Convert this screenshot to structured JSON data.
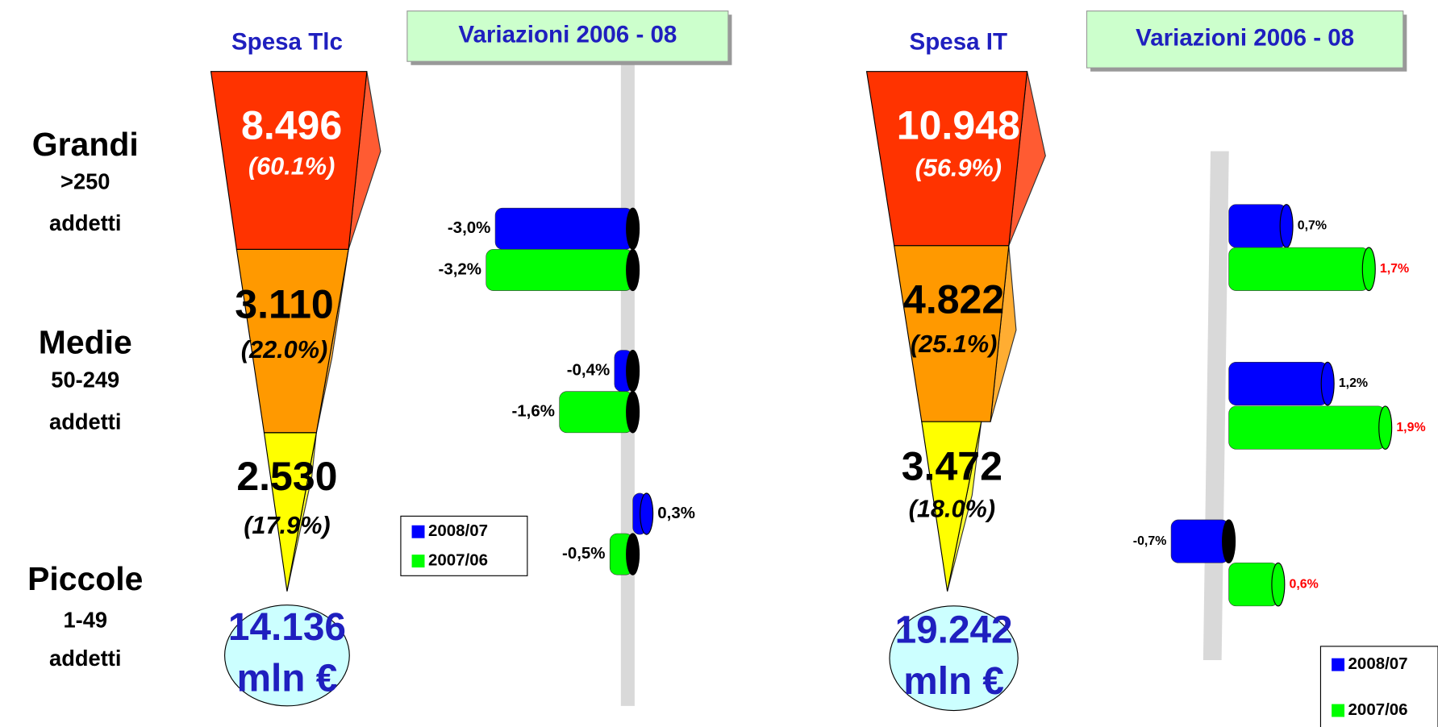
{
  "chart_data": [
    {
      "type": "funnel",
      "title": "Spesa Tlc",
      "categories": [
        "Grandi",
        "Medie",
        "Piccole"
      ],
      "category_sublabels": [
        [
          ">250",
          "addetti"
        ],
        [
          "50-249",
          "addetti"
        ],
        [
          "1-49",
          "addetti"
        ]
      ],
      "values": [
        8496,
        3110,
        2530
      ],
      "value_labels": [
        "8.496",
        "3.110",
        "2.530"
      ],
      "shares": [
        60.1,
        22.0,
        17.9
      ],
      "share_labels": [
        "(60.1%)",
        "(22.0%)",
        "(17.9%)"
      ],
      "colors": [
        "#ff3300",
        "#ff9900",
        "#ffff00"
      ],
      "total": 14136,
      "total_label": "14.136",
      "unit": "mln €"
    },
    {
      "type": "bar",
      "title": "Variazioni 2006 - 08",
      "xlim": [
        -4.2,
        1.0
      ],
      "legend": "lower left",
      "series": [
        {
          "name": "2008/07",
          "color": "#0000ff",
          "label_color": "#000000",
          "values": [
            -3.0,
            -0.4,
            0.3
          ],
          "value_labels": [
            "-3,0%",
            "-0,4%",
            "0,3%"
          ]
        },
        {
          "name": "2007/06",
          "color": "#00ff00",
          "label_color": "#000000",
          "values": [
            -3.2,
            -1.6,
            -0.5
          ],
          "value_labels": [
            "-3,2%",
            "-1,6%",
            "-0,5%"
          ]
        }
      ]
    },
    {
      "type": "funnel",
      "title": "Spesa IT",
      "values": [
        10948,
        4822,
        3472
      ],
      "value_labels": [
        "10.948",
        "4.822",
        "3.472"
      ],
      "shares": [
        56.9,
        25.1,
        18.0
      ],
      "share_labels": [
        "(56.9%)",
        "(25.1%)",
        "(18.0%)"
      ],
      "colors": [
        "#ff3300",
        "#ff9900",
        "#ffff00"
      ],
      "total": 19242,
      "total_label": "19.242",
      "unit": "mln €"
    },
    {
      "type": "bar",
      "title": "Variazioni 2006 - 08",
      "xlim": [
        -1.0,
        2.45
      ],
      "legend": "lower right",
      "series": [
        {
          "name": "2008/07",
          "color": "#0000ff",
          "label_color": "#000000",
          "values": [
            0.7,
            1.2,
            -0.7
          ],
          "value_labels": [
            "0,7%",
            "1,2%",
            "-0,7%"
          ]
        },
        {
          "name": "2007/06",
          "color": "#00ff00",
          "label_color": "#ff0000",
          "values": [
            1.7,
            1.9,
            0.6
          ],
          "value_labels": [
            "1,7%",
            "1,9%",
            "0,6%"
          ]
        }
      ]
    }
  ]
}
